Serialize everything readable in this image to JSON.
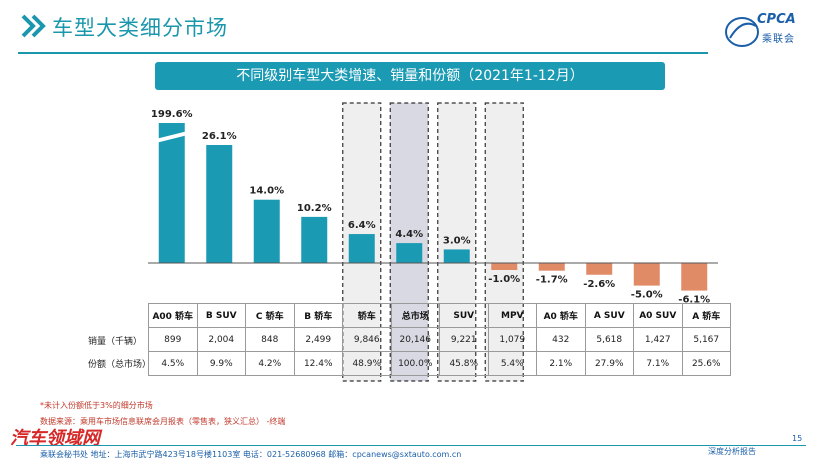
{
  "header": {
    "title": "车型大类细分市场",
    "logo_text": "CPCA",
    "logo_sub": "乘联会"
  },
  "chart_data": {
    "type": "bar",
    "title": "不同级别车型大类增速、销量和份额（2021年1-12月）",
    "categories": [
      "A00 轿车",
      "B SUV",
      "C 轿车",
      "B 轿车",
      "轿车",
      "总市场",
      "SUV",
      "MPV",
      "A0 轿车",
      "A SUV",
      "A0 SUV",
      "A 轿车"
    ],
    "values": [
      199.6,
      26.1,
      14.0,
      10.2,
      6.4,
      4.4,
      3.0,
      -1.0,
      -1.7,
      -2.6,
      -5.0,
      -6.1
    ],
    "value_labels": [
      "199.6%",
      "26.1%",
      "14.0%",
      "10.2%",
      "6.4%",
      "4.4%",
      "3.0%",
      "-1.0%",
      "-1.7%",
      "-2.6%",
      "-5.0%",
      "-6.1%"
    ],
    "axis_break_on_first": true,
    "highlighted": [
      "轿车",
      "总市场",
      "SUV",
      "MPV"
    ],
    "colors": {
      "positive": "#1b9ab3",
      "negative": "#e08a66",
      "highlight_fill": "#efefef",
      "market_fill": "#d9d9e3"
    }
  },
  "table": {
    "row_label_sales": "销量（千辆）",
    "row_label_share": "份额（总市场）",
    "sales": [
      "899",
      "2,004",
      "848",
      "2,499",
      "9,846",
      "20,146",
      "9,221",
      "1,079",
      "432",
      "5,618",
      "1,427",
      "5,167"
    ],
    "shares": [
      "4.5%",
      "9.9%",
      "4.2%",
      "12.4%",
      "48.9%",
      "100.0%",
      "45.8%",
      "5.4%",
      "2.1%",
      "27.9%",
      "7.1%",
      "25.6%"
    ]
  },
  "notes": {
    "note1": "*未计入份额低于3%的细分市场",
    "note2": "数据来源：乘用车市场信息联席会月报表（零售表，狭义汇总）   -终端"
  },
  "footer": {
    "text": "乘联会秘书处   地址：上海市武宁路423号18号楼1103室    电话：021-52680968    邮箱：cpcanews@sxtauto.com.cn",
    "right": "深度分析报告",
    "page_number": "15",
    "watermark": "汽车领域网"
  }
}
